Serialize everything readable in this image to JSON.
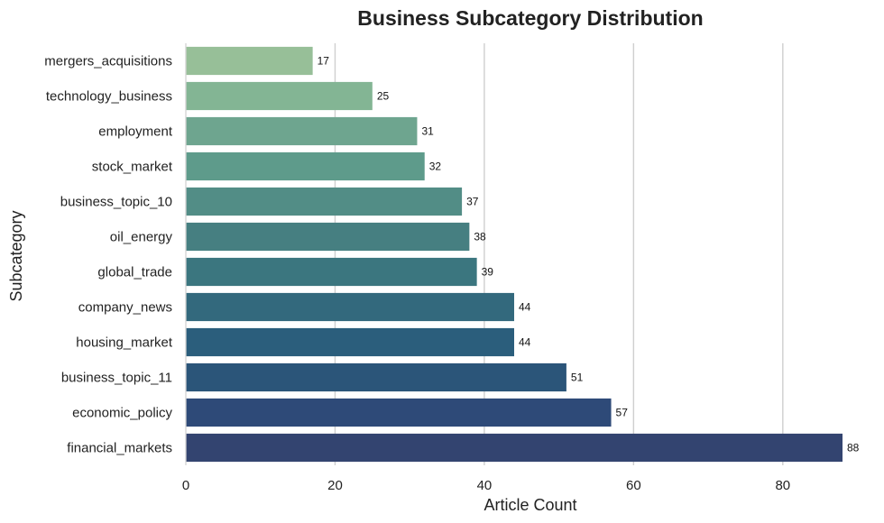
{
  "chart_data": {
    "type": "bar",
    "orientation": "horizontal",
    "title": "Business Subcategory Distribution",
    "xlabel": "Article Count",
    "ylabel": "Subcategory",
    "categories": [
      "mergers_acquisitions",
      "technology_business",
      "employment",
      "stock_market",
      "business_topic_10",
      "oil_energy",
      "global_trade",
      "company_news",
      "housing_market",
      "business_topic_11",
      "economic_policy",
      "financial_markets"
    ],
    "values": [
      17,
      25,
      31,
      32,
      37,
      38,
      39,
      44,
      44,
      51,
      57,
      88
    ],
    "data_labels": [
      "17",
      "25",
      "31",
      "32",
      "37",
      "38",
      "39",
      "44",
      "44",
      "51",
      "57",
      "88"
    ],
    "xlim": [
      0,
      88
    ],
    "x_ticks": [
      0,
      20,
      40,
      60,
      80
    ],
    "x_tick_labels": [
      "0",
      "20",
      "40",
      "60",
      "80"
    ],
    "grid": "vertical",
    "colors": [
      "#97bf98",
      "#83b594",
      "#6ea58f",
      "#5e9b8b",
      "#528d86",
      "#467f81",
      "#3b767f",
      "#33697d",
      "#2b5e7c",
      "#2b5579",
      "#2e4a78",
      "#334470"
    ]
  }
}
